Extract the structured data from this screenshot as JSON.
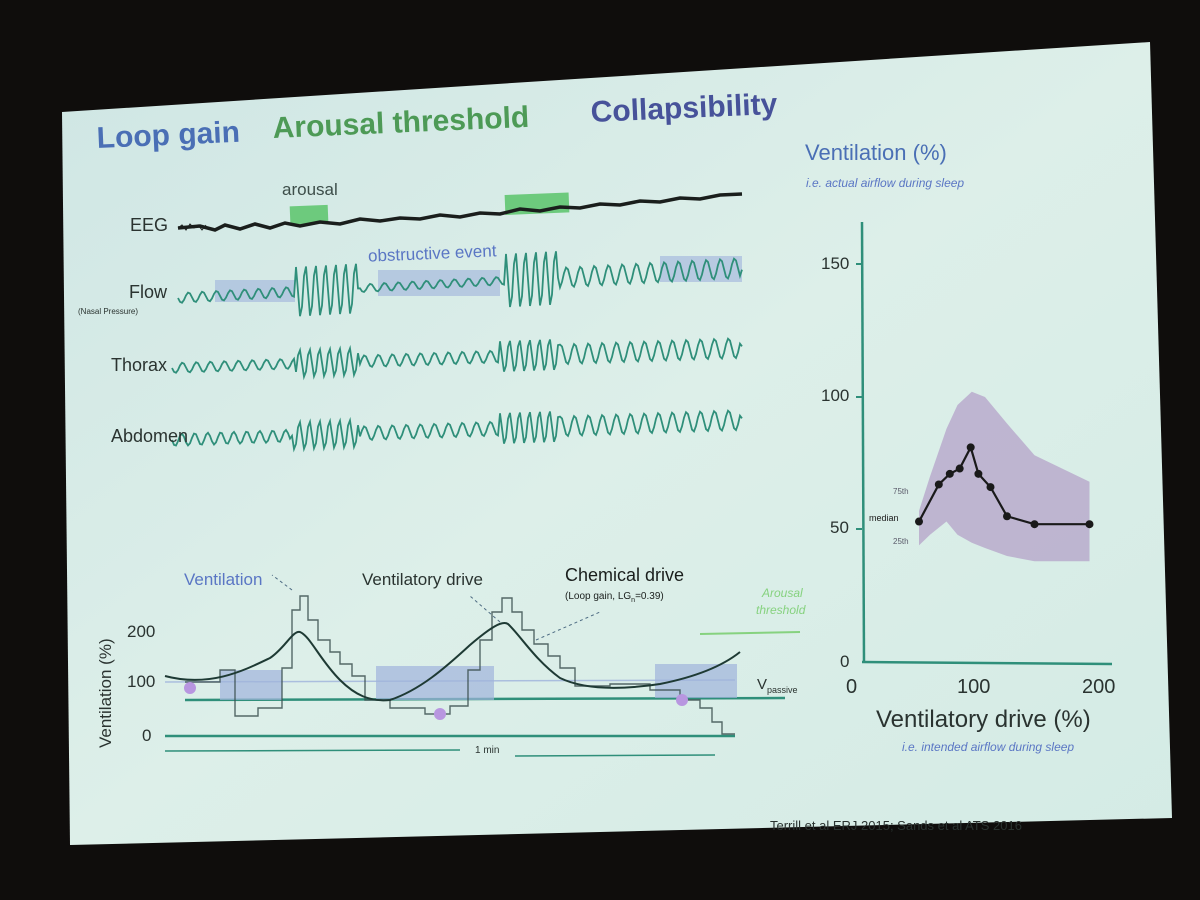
{
  "headings": {
    "loop_gain": "Loop gain",
    "arousal_threshold": "Arousal threshold",
    "collapsibility": "Collapsibility"
  },
  "traces": {
    "arousal": "arousal",
    "eeg": "EEG",
    "obstructive_event": "obstructive event",
    "flow": "Flow",
    "flow_sub": "(Nasal Pressure)",
    "thorax": "Thorax",
    "abdomen": "Abdomen"
  },
  "lower_plot": {
    "ventilation": "Ventilation",
    "ventilatory_drive": "Ventilatory drive",
    "chemical_drive": "Chemical drive",
    "chemical_drive_sub": "(Loop gain, LG",
    "chemical_drive_sub_sub": "n",
    "chemical_drive_sub_end": "=0.39)",
    "arousal_threshold_line1": "Arousal",
    "arousal_threshold_line2": "threshold",
    "v_passive_main": "V",
    "v_passive_sub": "passive",
    "ylabel": "Ventilation (%)",
    "yticks": [
      "200",
      "100",
      "0"
    ],
    "time_scale": "1 min"
  },
  "right_plot": {
    "title": "Ventilation (%)",
    "subtitle": "i.e. actual airflow during sleep",
    "xlabel": "Ventilatory drive (%)",
    "xsubtitle": "i.e. intended airflow during sleep",
    "yticks": [
      "150",
      "100",
      "50",
      "0"
    ],
    "xticks": [
      "0",
      "100",
      "200"
    ],
    "p75": "75th",
    "median": "median",
    "p25": "25th"
  },
  "chart_data": {
    "type": "line",
    "title": "Ventilation (%)",
    "subtitle": "i.e. actual airflow during sleep",
    "xlabel": "Ventilatory drive (%)",
    "ylabel": "Ventilation (%)",
    "xlim": [
      0,
      210
    ],
    "ylim": [
      0,
      165
    ],
    "xticks": [
      0,
      100,
      200
    ],
    "yticks": [
      0,
      50,
      100,
      150
    ],
    "series": [
      {
        "name": "median",
        "x": [
          50,
          68,
          78,
          87,
          97,
          104,
          115,
          130,
          155,
          205
        ],
        "y": [
          53,
          67,
          71,
          73,
          81,
          71,
          66,
          55,
          52,
          52
        ]
      }
    ],
    "band": {
      "upper_name": "75th",
      "lower_name": "25th",
      "x": [
        50,
        60,
        75,
        85,
        98,
        110,
        130,
        155,
        205
      ],
      "upper": [
        57,
        70,
        88,
        97,
        102,
        100,
        90,
        78,
        68
      ],
      "lower": [
        44,
        48,
        53,
        48,
        45,
        43,
        40,
        38,
        38
      ]
    },
    "grid": false,
    "colors": {
      "band": "#b7a6cb",
      "line": "#1a1a1a",
      "axis": "#2f8f7a"
    }
  },
  "citation": "Terrill et al ERJ 2015; Sands et al ATS 2016",
  "colors": {
    "background": "#0f0d0c",
    "slide": "#d9eee9",
    "trace": "#2f8f7a",
    "heading_blue": "#4a6fb5",
    "heading_green": "#4d9a56",
    "heading_purple": "#47529a",
    "highlight_green": "#5ac46a",
    "shade_blue": "#9fb3dc"
  }
}
